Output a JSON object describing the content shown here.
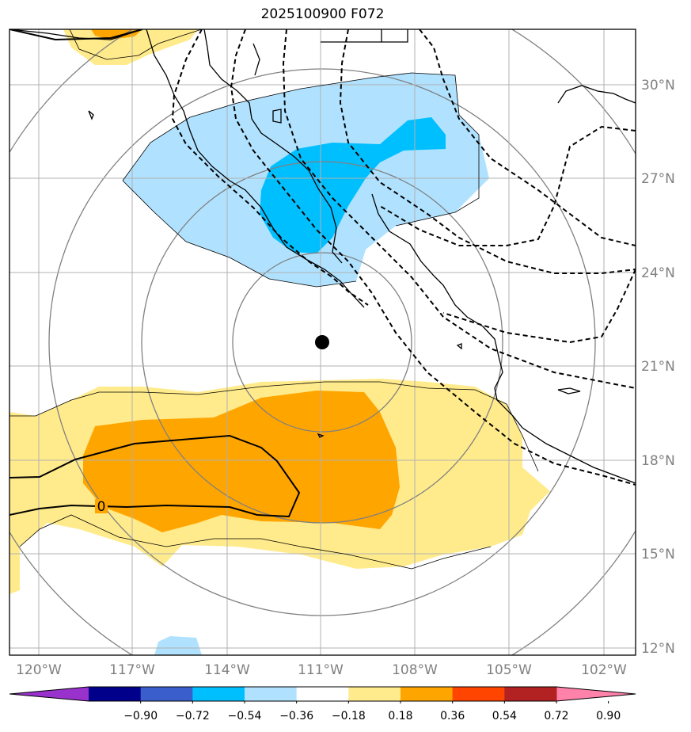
{
  "title": "2025100900 F072",
  "lon_labels": [
    "120°W",
    "117°W",
    "114°W",
    "111°W",
    "108°W",
    "105°W",
    "102°W"
  ],
  "lat_labels": [
    "30°N",
    "27°N",
    "24°N",
    "21°N",
    "18°N",
    "15°N",
    "12°N"
  ],
  "contour_label": "0",
  "colorbar": {
    "colors": [
      "#9932cc",
      "#00008b",
      "#3a5fcd",
      "#00bfff",
      "#b0e2ff",
      "#ffffff",
      "#ffeb8b",
      "#ffa500",
      "#ff4500",
      "#b22222",
      "#ff82ab"
    ],
    "ticks": [
      "−0.90",
      "−0.72",
      "−0.54",
      "−0.36",
      "−0.18",
      "0.18",
      "0.36",
      "0.54",
      "0.72",
      "0.90"
    ]
  },
  "palette": {
    "light_blue": "#b0e2ff",
    "blue": "#00bfff",
    "light_yellow": "#ffeb8b",
    "orange": "#ffa500"
  },
  "marker": "storm-center-dot"
}
